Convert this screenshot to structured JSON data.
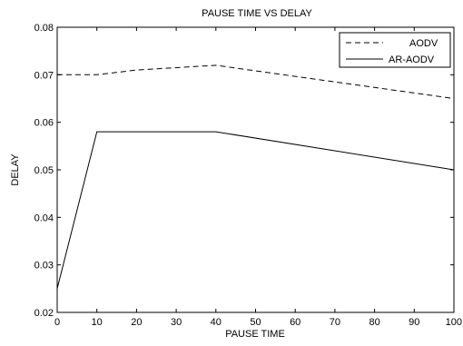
{
  "chart_data": {
    "type": "line",
    "title": "PAUSE TIME VS DELAY",
    "xlabel": "PAUSE TIME",
    "ylabel": "DELAY",
    "xlim": [
      0,
      100
    ],
    "ylim": [
      0.02,
      0.08
    ],
    "x_ticks": [
      0,
      10,
      20,
      30,
      40,
      50,
      60,
      70,
      80,
      90,
      100
    ],
    "y_ticks": [
      0.02,
      0.03,
      0.04,
      0.05,
      0.06,
      0.07,
      0.08
    ],
    "x_tick_labels": [
      "0",
      "10",
      "20",
      "30",
      "40",
      "50",
      "60",
      "70",
      "80",
      "90",
      "100"
    ],
    "y_tick_labels": [
      "0.02",
      "0.03",
      "0.04",
      "0.05",
      "0.06",
      "0.07",
      "0.08"
    ],
    "grid": false,
    "legend_position": "top-right",
    "series": [
      {
        "name": "AODV",
        "style": "dashed",
        "color": "#000000",
        "x": [
          0,
          10,
          20,
          40,
          100
        ],
        "y": [
          0.07,
          0.07,
          0.071,
          0.072,
          0.065
        ]
      },
      {
        "name": "AR-AODV",
        "style": "solid",
        "color": "#000000",
        "x": [
          0,
          10,
          40,
          100
        ],
        "y": [
          0.025,
          0.058,
          0.058,
          0.05
        ]
      }
    ]
  }
}
